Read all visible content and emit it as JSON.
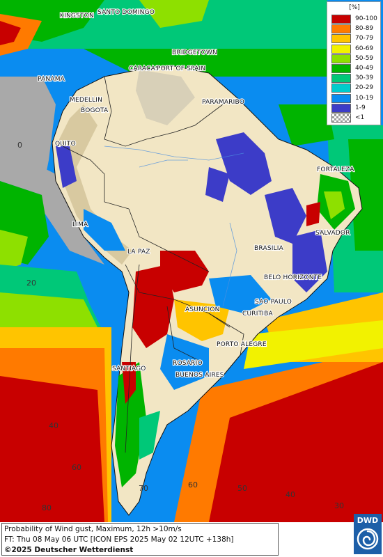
{
  "legend": {
    "unit": "[%]",
    "classes": [
      {
        "label": "90-100",
        "color": "#c80000"
      },
      {
        "label": "80-89",
        "color": "#ff7a00"
      },
      {
        "label": "70-79",
        "color": "#ffc400"
      },
      {
        "label": "60-69",
        "color": "#f2f200"
      },
      {
        "label": "50-59",
        "color": "#8ee000"
      },
      {
        "label": "40-49",
        "color": "#00b400"
      },
      {
        "label": "30-39",
        "color": "#00c878"
      },
      {
        "label": "20-29",
        "color": "#00cccc"
      },
      {
        "label": "10-19",
        "color": "#0a8cf0"
      },
      {
        "label": "1-9",
        "color": "#3c3cc8"
      },
      {
        "label": "<1",
        "color": "checker"
      }
    ]
  },
  "cities": [
    {
      "name": "KINGSTON"
    },
    {
      "name": "SANTO DOMINGO"
    },
    {
      "name": "BRIDGETOWN"
    },
    {
      "name": "CARACAS"
    },
    {
      "name": "PORT OF SPAIN"
    },
    {
      "name": "PANAMA"
    },
    {
      "name": "MEDELLIN"
    },
    {
      "name": "BOGOTA"
    },
    {
      "name": "PARAMARIBO"
    },
    {
      "name": "QUITO"
    },
    {
      "name": "FORTALEZA"
    },
    {
      "name": "LIMA"
    },
    {
      "name": "SALVADOR"
    },
    {
      "name": "LA PAZ"
    },
    {
      "name": "BRASILIA"
    },
    {
      "name": "BELO HORIZONTE"
    },
    {
      "name": "SAO PAULO"
    },
    {
      "name": "ASUNCION"
    },
    {
      "name": "CURITIBA"
    },
    {
      "name": "PORTO ALEGRE"
    },
    {
      "name": "SANTIAGO"
    },
    {
      "name": "ROSARIO"
    },
    {
      "name": "BUENOS AIRES"
    }
  ],
  "grid_labels": [
    "0",
    "20",
    "40",
    "60",
    "80",
    "70",
    "60",
    "50",
    "40",
    "30"
  ],
  "caption": {
    "line1": "Probability of Wind gust, Maximum, 12h >10m/s",
    "line2": "FT: Thu 08 May 06 UTC [ICON EPS 2025 May 02 12UTC +138h]",
    "line3": "©2025 Deutscher Wetterdienst"
  },
  "logo_text": "DWD",
  "colors": {
    "land_low": "#f2e6c4",
    "ocean_gray": "#a9a9a9",
    "dwd_blue": "#1d5fa8"
  }
}
